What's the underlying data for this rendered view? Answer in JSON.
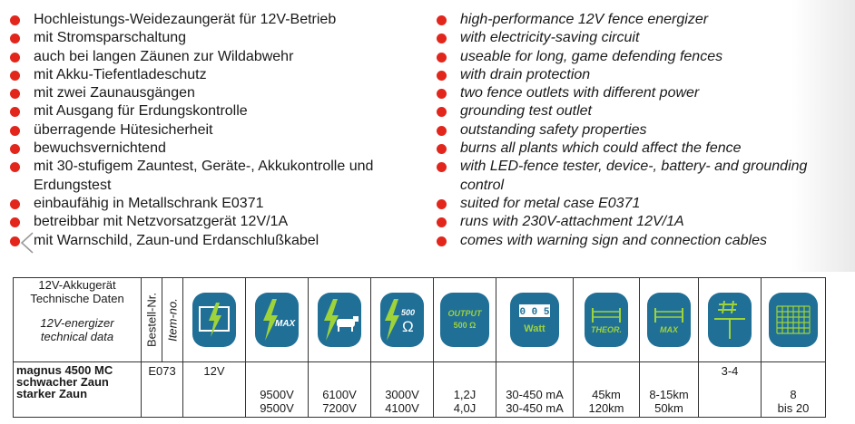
{
  "features_de": [
    "Hochleistungs-Weidezaungerät für 12V-Betrieb",
    "mit Stromsparschaltung",
    "auch bei langen Zäunen zur Wildabwehr",
    "mit Akku-Tiefentladeschutz",
    "mit zwei Zaunausgängen",
    "mit Ausgang für Erdungskontrolle",
    "überragende Hütesicherheit",
    "bewuchsvernichtend",
    "mit 30-stufigem Zauntest, Geräte-, Akkukontrolle und Erdungstest",
    "einbaufähig in Metallschrank E0371",
    "betreibbar mit Netzvorsatzgerät 12V/1A",
    "mit Warnschild, Zaun-und Erdanschlußkabel"
  ],
  "features_en": [
    "high-performance 12V fence energizer",
    "with electricity-saving circuit",
    "useable for long, game defending fences",
    "with drain protection",
    "two fence outlets with different power",
    "grounding test outlet",
    "outstanding safety properties",
    "burns all plants which could affect the fence",
    "with LED-fence tester, device-, battery- and grounding control",
    "suited for metal case E0371",
    "runs with 230V-attachment 12V/1A",
    "comes with warning sign and connection cables"
  ],
  "bullet_color": "#e2261c",
  "icon_color": "#1f6f96",
  "table": {
    "header_de_line1": "12V-Akkugerät",
    "header_de_line2": "Technische Daten",
    "header_en_line1": "12V-energizer",
    "header_en_line2": "technical data",
    "order_de": "Bestell-Nr.",
    "order_en": "Item-no.",
    "icons": [
      "battery-bolt-icon",
      "bolt-max-icon",
      "bolt-animal-icon",
      "bolt-500-ohm-icon",
      "output-500-ohm-icon",
      "watt-counter-icon",
      "theoretical-fence-icon",
      "max-fence-icon",
      "ground-rod-icon",
      "fence-mesh-icon"
    ],
    "icon_texts": {
      "max": "MAX",
      "ohm500": "500",
      "ohm": "Ω",
      "output": "OUTPUT",
      "output_ohm": "500 Ω",
      "watt_digits": "0 0 5",
      "watt": "Watt",
      "theor": "THEOR.",
      "max2": "MAX"
    },
    "row": {
      "model_line1": "magnus 4500 MC",
      "model_line2": "schwacher Zaun",
      "model_line3": "starker Zaun",
      "item_no": "E073",
      "voltage": "12V",
      "c1a": "9500V",
      "c1b": "9500V",
      "c2a": "6100V",
      "c2b": "7200V",
      "c3a": "3000V",
      "c3b": "4100V",
      "c4a": "1,2J",
      "c4b": "4,0J",
      "c5a": "30-450 mA",
      "c5b": "30-450 mA",
      "c6a": "45km",
      "c6b": "120km",
      "c7a": "8-15km",
      "c7b": "50km",
      "c8": "3-4",
      "c9a": "8",
      "c9b": "bis 20"
    }
  }
}
